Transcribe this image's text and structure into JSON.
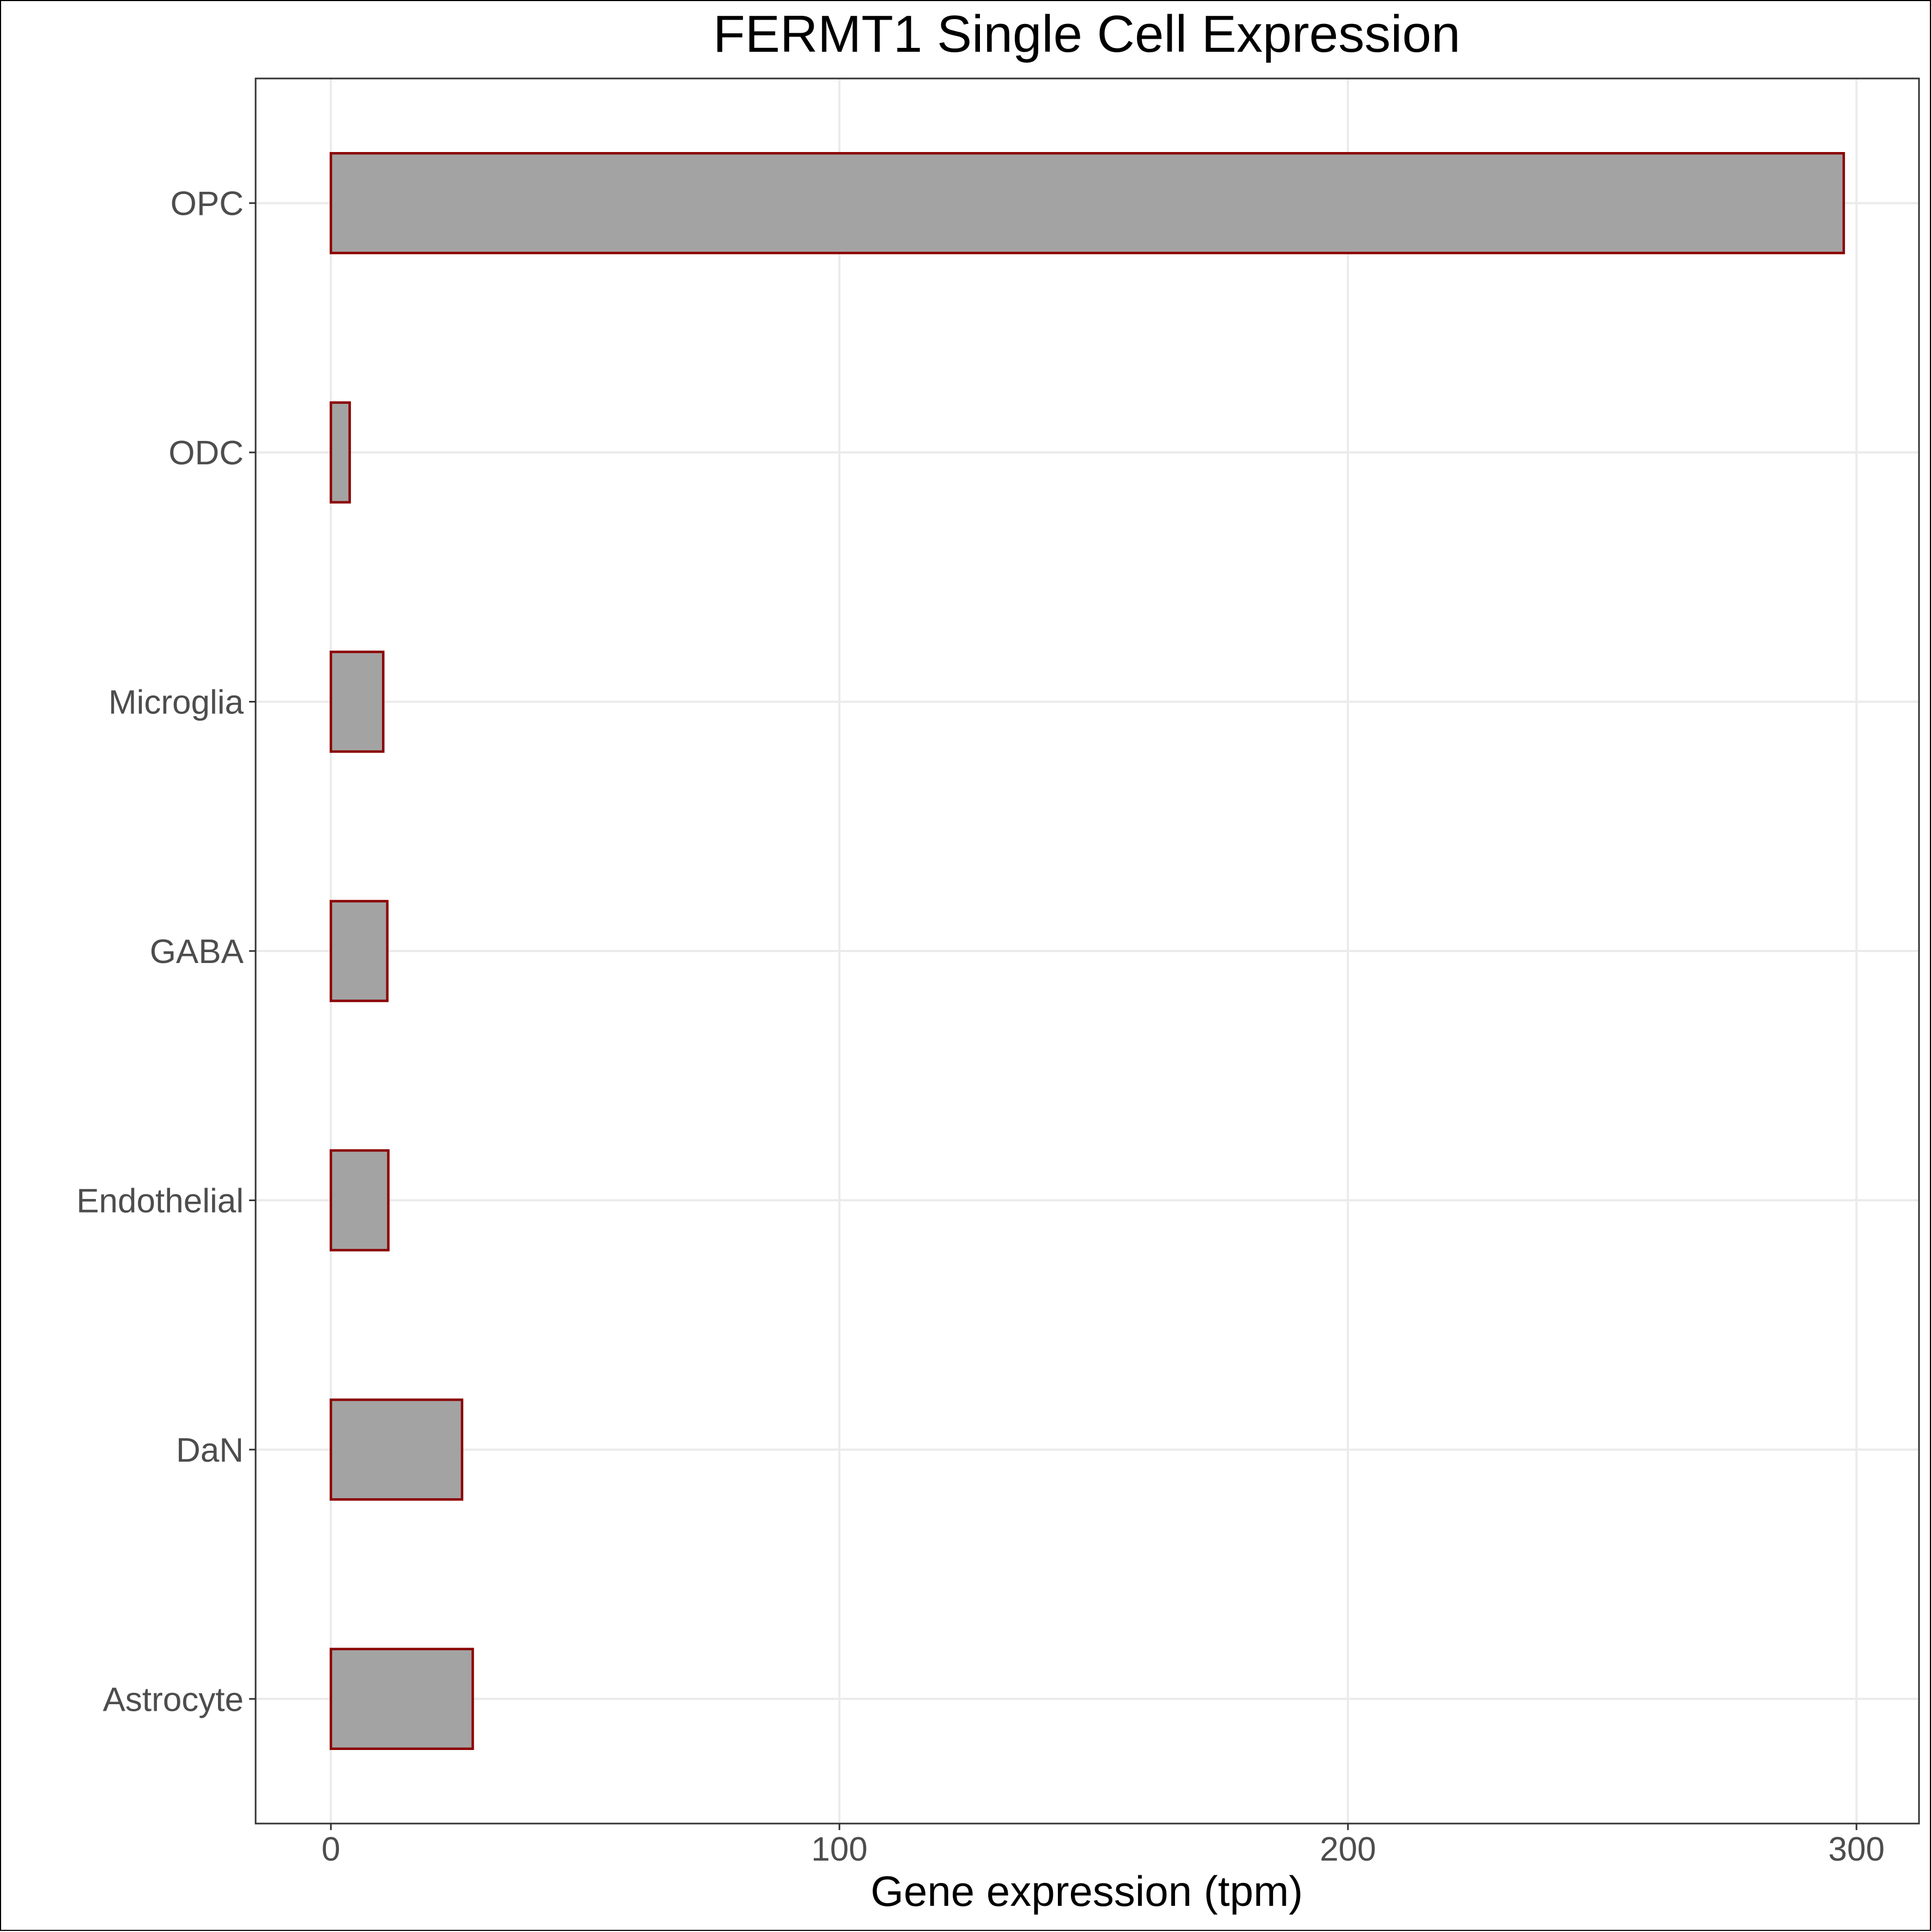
{
  "chart_data": {
    "type": "bar",
    "orientation": "horizontal",
    "title": "FERMT1 Single Cell Expression",
    "xlabel": "Gene expression (tpm)",
    "ylabel": "",
    "categories": [
      "OPC",
      "ODC",
      "Microglia",
      "GABA",
      "Endothelial",
      "DaN",
      "Astrocyte"
    ],
    "values": [
      297.5,
      3.7,
      10.3,
      11.1,
      11.3,
      25.8,
      27.9
    ],
    "xlim": [
      -14.8,
      312.3
    ],
    "xticks": [
      0,
      100,
      200,
      300
    ],
    "xtick_labels": [
      "0",
      "100",
      "200",
      "300"
    ],
    "grid": true,
    "legend": "none",
    "colors": {
      "bar_fill": "#a3a3a3",
      "bar_stroke": "#8b0000",
      "grid": "#ebebeb",
      "panel_border": "#333333"
    }
  }
}
